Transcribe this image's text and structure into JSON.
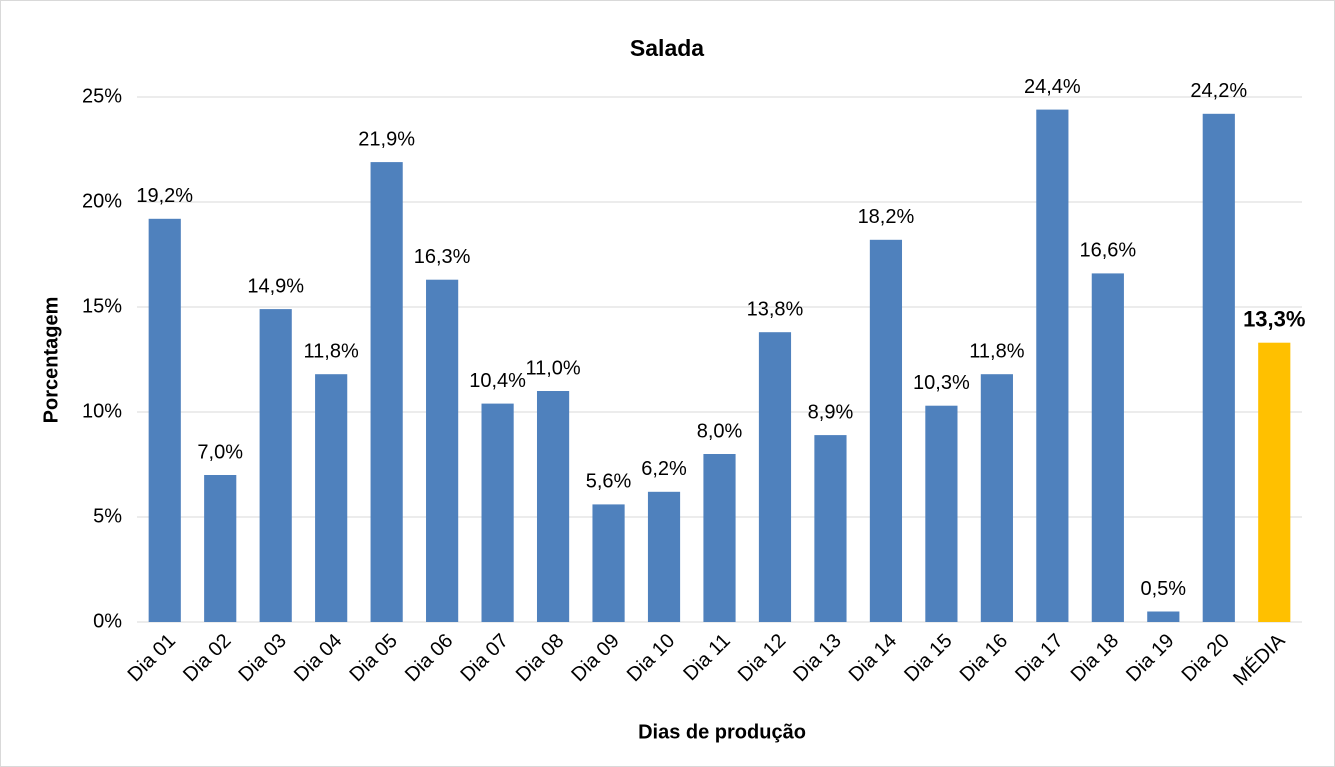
{
  "chart_data": {
    "type": "bar",
    "title": "Salada",
    "x_label": "Dias de produção",
    "y_label": "Porcentagem",
    "categories": [
      "Dia 01",
      "Dia 02",
      "Dia 03",
      "Dia 04",
      "Dia 05",
      "Dia 06",
      "Dia 07",
      "Dia 08",
      "Dia 09",
      "Dia 10",
      "Dia 11",
      "Dia 12",
      "Dia 13",
      "Dia 14",
      "Dia 15",
      "Dia 16",
      "Dia 17",
      "Dia 18",
      "Dia 19",
      "Dia 20",
      "MÉDIA"
    ],
    "values": [
      19.2,
      7.0,
      14.9,
      11.8,
      21.9,
      16.3,
      10.4,
      11.0,
      5.6,
      6.2,
      8.0,
      13.8,
      8.9,
      18.2,
      10.3,
      11.8,
      24.4,
      16.6,
      0.5,
      24.2,
      13.3
    ],
    "value_labels": [
      "19,2%",
      "7,0%",
      "14,9%",
      "11,8%",
      "21,9%",
      "16,3%",
      "10,4%",
      "11,0%",
      "5,6%",
      "6,2%",
      "8,0%",
      "13,8%",
      "8,9%",
      "18,2%",
      "10,3%",
      "11,8%",
      "24,4%",
      "16,6%",
      "0,5%",
      "24,2%",
      "13,3%"
    ],
    "color": "#4f81bd",
    "colors": [
      "#4f81bd",
      "#4f81bd",
      "#4f81bd",
      "#4f81bd",
      "#4f81bd",
      "#4f81bd",
      "#4f81bd",
      "#4f81bd",
      "#4f81bd",
      "#4f81bd",
      "#4f81bd",
      "#4f81bd",
      "#4f81bd",
      "#4f81bd",
      "#4f81bd",
      "#4f81bd",
      "#4f81bd",
      "#4f81bd",
      "#4f81bd",
      "#4f81bd",
      "#ffc000"
    ],
    "ylim": [
      0,
      25
    ],
    "yticks": [
      {
        "value": 0,
        "label": "0%"
      },
      {
        "value": 5,
        "label": "5%"
      },
      {
        "value": 10,
        "label": "10%"
      },
      {
        "value": 15,
        "label": "15%"
      },
      {
        "value": 20,
        "label": "20%"
      },
      {
        "value": 25,
        "label": "25%"
      }
    ],
    "grid": true
  }
}
